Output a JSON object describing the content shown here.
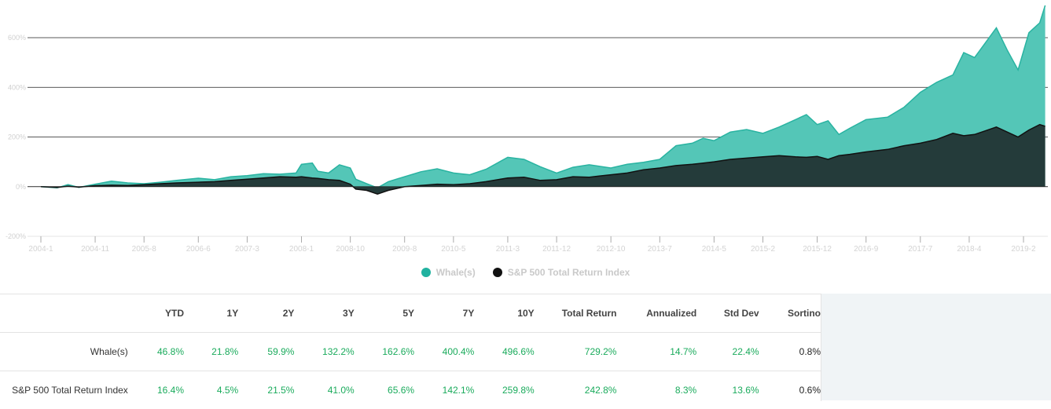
{
  "chart_data": {
    "type": "area",
    "y_ticks": [
      "-200%",
      "0%",
      "200%",
      "400%",
      "600%"
    ],
    "y_tick_values": [
      -200,
      0,
      200,
      400,
      600
    ],
    "ylim": [
      -200,
      740
    ],
    "x_tick_labels": [
      "2004-1",
      "2004-11",
      "2005-8",
      "2006-6",
      "2007-3",
      "2008-1",
      "2008-10",
      "2009-8",
      "2010-5",
      "2011-3",
      "2011-12",
      "2012-10",
      "2013-7",
      "2014-5",
      "2015-2",
      "2015-12",
      "2016-9",
      "2017-7",
      "2018-4",
      "2019-2"
    ],
    "x_range": [
      "2004-1",
      "2019-6"
    ],
    "series": [
      {
        "name": "Whale(s)",
        "color": "#3bbfad",
        "points": [
          [
            "2004-1",
            0
          ],
          [
            "2004-4",
            -5
          ],
          [
            "2004-6",
            8
          ],
          [
            "2004-8",
            -3
          ],
          [
            "2004-11",
            10
          ],
          [
            "2005-2",
            22
          ],
          [
            "2005-5",
            15
          ],
          [
            "2005-8",
            12
          ],
          [
            "2005-11",
            18
          ],
          [
            "2006-2",
            25
          ],
          [
            "2006-6",
            34
          ],
          [
            "2006-9",
            28
          ],
          [
            "2006-12",
            40
          ],
          [
            "2007-3",
            44
          ],
          [
            "2007-6",
            52
          ],
          [
            "2007-9",
            50
          ],
          [
            "2007-12",
            55
          ],
          [
            "2008-1",
            90
          ],
          [
            "2008-3",
            95
          ],
          [
            "2008-4",
            62
          ],
          [
            "2008-6",
            55
          ],
          [
            "2008-8",
            88
          ],
          [
            "2008-10",
            75
          ],
          [
            "2008-11",
            30
          ],
          [
            "2009-1",
            12
          ],
          [
            "2009-3",
            -5
          ],
          [
            "2009-5",
            20
          ],
          [
            "2009-8",
            40
          ],
          [
            "2009-11",
            60
          ],
          [
            "2010-2",
            72
          ],
          [
            "2010-5",
            55
          ],
          [
            "2010-8",
            48
          ],
          [
            "2010-11",
            70
          ],
          [
            "2011-3",
            118
          ],
          [
            "2011-6",
            110
          ],
          [
            "2011-9",
            80
          ],
          [
            "2011-12",
            55
          ],
          [
            "2012-3",
            78
          ],
          [
            "2012-6",
            88
          ],
          [
            "2012-10",
            75
          ],
          [
            "2013-1",
            90
          ],
          [
            "2013-4",
            98
          ],
          [
            "2013-7",
            110
          ],
          [
            "2013-10",
            165
          ],
          [
            "2014-1",
            175
          ],
          [
            "2014-3",
            195
          ],
          [
            "2014-5",
            185
          ],
          [
            "2014-8",
            220
          ],
          [
            "2014-11",
            230
          ],
          [
            "2015-2",
            215
          ],
          [
            "2015-5",
            240
          ],
          [
            "2015-8",
            270
          ],
          [
            "2015-10",
            290
          ],
          [
            "2015-12",
            250
          ],
          [
            "2016-2",
            265
          ],
          [
            "2016-4",
            210
          ],
          [
            "2016-6",
            235
          ],
          [
            "2016-9",
            270
          ],
          [
            "2017-1",
            280
          ],
          [
            "2017-4",
            320
          ],
          [
            "2017-7",
            380
          ],
          [
            "2017-10",
            420
          ],
          [
            "2018-1",
            450
          ],
          [
            "2018-3",
            540
          ],
          [
            "2018-5",
            520
          ],
          [
            "2018-7",
            580
          ],
          [
            "2018-9",
            640
          ],
          [
            "2018-11",
            550
          ],
          [
            "2019-1",
            470
          ],
          [
            "2019-3",
            620
          ],
          [
            "2019-5",
            660
          ],
          [
            "2019-6",
            730
          ]
        ]
      },
      {
        "name": "S&P 500 Total Return Index",
        "color": "#111111",
        "points": [
          [
            "2004-1",
            0
          ],
          [
            "2004-4",
            -3
          ],
          [
            "2004-6",
            2
          ],
          [
            "2004-8",
            -2
          ],
          [
            "2004-11",
            4
          ],
          [
            "2005-2",
            6
          ],
          [
            "2005-5",
            5
          ],
          [
            "2005-8",
            8
          ],
          [
            "2005-11",
            12
          ],
          [
            "2006-2",
            15
          ],
          [
            "2006-6",
            18
          ],
          [
            "2006-9",
            20
          ],
          [
            "2006-12",
            25
          ],
          [
            "2007-3",
            30
          ],
          [
            "2007-6",
            35
          ],
          [
            "2007-9",
            40
          ],
          [
            "2007-12",
            38
          ],
          [
            "2008-1",
            40
          ],
          [
            "2008-3",
            35
          ],
          [
            "2008-4",
            33
          ],
          [
            "2008-6",
            28
          ],
          [
            "2008-8",
            25
          ],
          [
            "2008-10",
            10
          ],
          [
            "2008-11",
            -10
          ],
          [
            "2009-1",
            -15
          ],
          [
            "2009-3",
            -30
          ],
          [
            "2009-5",
            -15
          ],
          [
            "2009-8",
            0
          ],
          [
            "2009-11",
            5
          ],
          [
            "2010-2",
            10
          ],
          [
            "2010-5",
            8
          ],
          [
            "2010-8",
            12
          ],
          [
            "2010-11",
            20
          ],
          [
            "2011-3",
            35
          ],
          [
            "2011-6",
            38
          ],
          [
            "2011-9",
            25
          ],
          [
            "2011-12",
            28
          ],
          [
            "2012-3",
            40
          ],
          [
            "2012-6",
            38
          ],
          [
            "2012-10",
            48
          ],
          [
            "2013-1",
            55
          ],
          [
            "2013-4",
            68
          ],
          [
            "2013-7",
            75
          ],
          [
            "2013-10",
            85
          ],
          [
            "2014-1",
            90
          ],
          [
            "2014-3",
            95
          ],
          [
            "2014-5",
            100
          ],
          [
            "2014-8",
            110
          ],
          [
            "2014-11",
            115
          ],
          [
            "2015-2",
            120
          ],
          [
            "2015-5",
            125
          ],
          [
            "2015-8",
            120
          ],
          [
            "2015-10",
            118
          ],
          [
            "2015-12",
            122
          ],
          [
            "2016-2",
            110
          ],
          [
            "2016-4",
            125
          ],
          [
            "2016-6",
            130
          ],
          [
            "2016-9",
            140
          ],
          [
            "2017-1",
            150
          ],
          [
            "2017-4",
            165
          ],
          [
            "2017-7",
            175
          ],
          [
            "2017-10",
            190
          ],
          [
            "2018-1",
            215
          ],
          [
            "2018-3",
            205
          ],
          [
            "2018-5",
            210
          ],
          [
            "2018-7",
            225
          ],
          [
            "2018-9",
            240
          ],
          [
            "2018-11",
            220
          ],
          [
            "2019-1",
            200
          ],
          [
            "2019-3",
            228
          ],
          [
            "2019-5",
            250
          ],
          [
            "2019-6",
            243
          ]
        ]
      }
    ],
    "grid": true,
    "legend_position": "bottom-center"
  },
  "legend": [
    {
      "label": "Whale(s)",
      "color": "#21b2a0"
    },
    {
      "label": "S&P 500 Total Return Index",
      "color": "#111111"
    }
  ],
  "table": {
    "headers": [
      "",
      "YTD",
      "1Y",
      "2Y",
      "3Y",
      "5Y",
      "7Y",
      "10Y",
      "Total Return",
      "Annualized",
      "Std Dev",
      "Sortino"
    ],
    "rows": [
      {
        "name": "Whale(s)",
        "values": [
          "46.8%",
          "21.8%",
          "59.9%",
          "132.2%",
          "162.6%",
          "400.4%",
          "496.6%",
          "729.2%",
          "14.7%",
          "22.4%",
          "0.8%"
        ]
      },
      {
        "name": "S&P 500 Total Return Index",
        "values": [
          "16.4%",
          "4.5%",
          "21.5%",
          "41.0%",
          "65.6%",
          "142.1%",
          "259.8%",
          "242.8%",
          "8.3%",
          "13.6%",
          "0.6%"
        ]
      }
    ]
  }
}
